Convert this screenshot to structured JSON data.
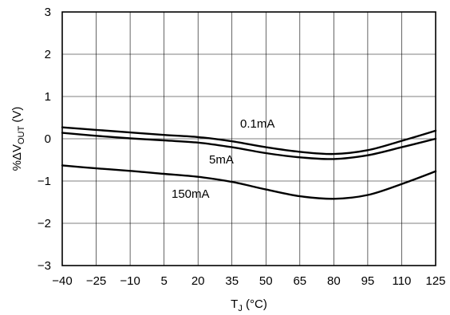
{
  "chart_data": {
    "type": "line",
    "xlabel": "T_J (°C)",
    "xlabel_main": "T",
    "xlabel_sub": "J",
    "xlabel_unit": " (°C)",
    "ylabel": "%ΔV_OUT (V)",
    "ylabel_prefix": "%ΔV",
    "ylabel_sub": "OUT",
    "ylabel_unit": " (V)",
    "xlim": [
      -40,
      125
    ],
    "ylim": [
      -3,
      3
    ],
    "x_ticks": [
      -40,
      -25,
      -10,
      5,
      20,
      35,
      50,
      65,
      80,
      95,
      110,
      125
    ],
    "x_tick_labels": [
      "−40",
      "−25",
      "−10",
      "5",
      "20",
      "35",
      "50",
      "65",
      "80",
      "95",
      "110",
      "125"
    ],
    "y_ticks": [
      -3,
      -2,
      -1,
      0,
      1,
      2,
      3
    ],
    "y_tick_labels": [
      "−3",
      "−2",
      "−1",
      "0",
      "1",
      "2",
      "3"
    ],
    "grid": true,
    "series": [
      {
        "name": "0.1mA",
        "x": [
          -40,
          -25,
          -10,
          5,
          20,
          35,
          50,
          65,
          80,
          95,
          110,
          125
        ],
        "y": [
          0.27,
          0.21,
          0.15,
          0.09,
          0.04,
          -0.06,
          -0.2,
          -0.31,
          -0.36,
          -0.27,
          -0.05,
          0.19
        ]
      },
      {
        "name": "5mA",
        "x": [
          -40,
          -25,
          -10,
          5,
          20,
          35,
          50,
          65,
          80,
          95,
          110,
          125
        ],
        "y": [
          0.14,
          0.07,
          0.01,
          -0.04,
          -0.09,
          -0.2,
          -0.34,
          -0.44,
          -0.48,
          -0.39,
          -0.2,
          0.0
        ]
      },
      {
        "name": "150mA",
        "x": [
          -40,
          -25,
          -10,
          5,
          20,
          35,
          50,
          65,
          80,
          95,
          110,
          125
        ],
        "y": [
          -0.63,
          -0.7,
          -0.76,
          -0.83,
          -0.9,
          -1.02,
          -1.2,
          -1.36,
          -1.42,
          -1.33,
          -1.07,
          -0.77
        ]
      }
    ]
  }
}
